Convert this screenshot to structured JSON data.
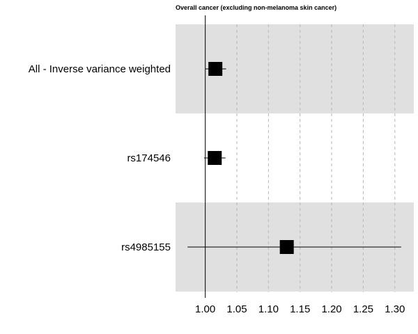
{
  "chart_data": {
    "type": "forest",
    "title": "Overall cancer (excluding non-melanoma skin cancer)",
    "xlabel": "",
    "ylabel": "",
    "xlim": [
      0.953,
      1.33
    ],
    "xticks": [
      "1.00",
      "1.05",
      "1.10",
      "1.15",
      "1.20",
      "1.25",
      "1.30"
    ],
    "reference_line": 1.0,
    "grid": "dashed vertical",
    "rows": [
      {
        "label": "All - Inverse variance weighted",
        "estimate": 1.016,
        "lower": 1.0,
        "upper": 1.033,
        "shaded": true
      },
      {
        "label": "rs174546",
        "estimate": 1.015,
        "lower": 0.998,
        "upper": 1.032,
        "shaded": false
      },
      {
        "label": "rs4985155",
        "estimate": 1.129,
        "lower": 0.972,
        "upper": 1.31,
        "shaded": true
      }
    ],
    "colors": {
      "band": "#e0e0e0",
      "marker": "#000000",
      "grid": "#b5b5b5"
    }
  }
}
